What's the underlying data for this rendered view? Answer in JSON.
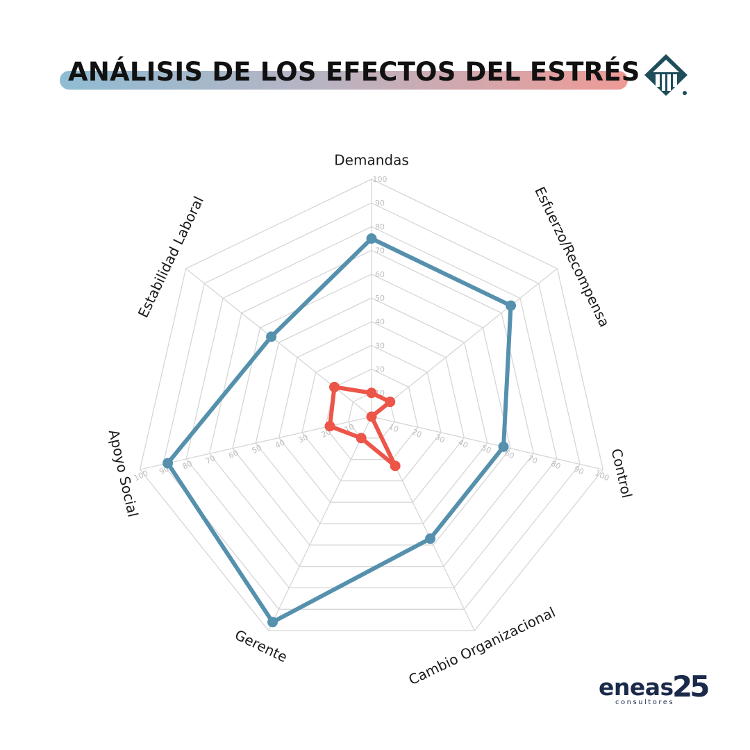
{
  "header": {
    "title": "ANÁLISIS DE LOS EFECTOS DEL ESTRÉS"
  },
  "brand": {
    "icon": "triangle-emblem-icon",
    "icon_color": "#1f4d5a"
  },
  "chart_data": {
    "type": "radar",
    "categories": [
      "Demandas",
      "Esfuerzo/Recompensa",
      "Control",
      "Cambio Organizacional",
      "Gerente",
      "Apoyo Social",
      "Estabilidad Laboral"
    ],
    "range": [
      0,
      100
    ],
    "ticks": [
      "10",
      "20",
      "30",
      "40",
      "50",
      "60",
      "70",
      "80",
      "90",
      "100"
    ],
    "grid": true,
    "series": [
      {
        "color": "#5590ad",
        "values": [
          75,
          75,
          57,
          57,
          96,
          88,
          54
        ]
      },
      {
        "color": "#ec5548",
        "values": [
          10,
          10,
          0,
          23,
          10,
          18,
          20
        ]
      }
    ]
  },
  "footer": {
    "brand_word": "eneas",
    "brand_number": "25",
    "brand_sub": "consultores"
  }
}
